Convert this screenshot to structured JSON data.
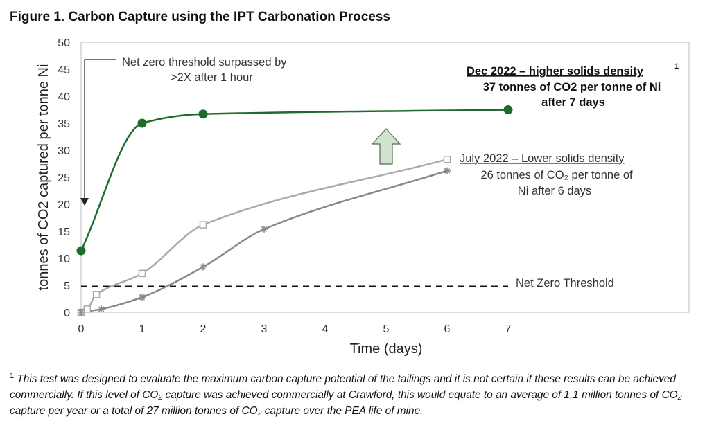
{
  "figure_title": "Figure 1. Carbon Capture using the IPT Carbonation Process",
  "footnote": {
    "marker": "1",
    "text": "This test was designed to evaluate the maximum carbon capture potential of the tailings and it is not certain if these results can be achieved commercially. If this level of CO₂ capture was achieved commercially at Crawford, this would equate to an average of 1.1 million tonnes of CO₂ capture per year or a total of 27 million tonnes of CO₂ capture over the PEA life of mine."
  },
  "colors": {
    "dec_series": "#1e6b2a",
    "jul_series": "#aaaaaa",
    "jul_star_series": "#888888",
    "threshold": "#111111",
    "arrow_fill": "#cfe3cf",
    "arrow_stroke": "#556b55"
  },
  "annotations": {
    "net_zero_callout_line1": "Net zero threshold surpassed by",
    "net_zero_callout_line2": ">2X after 1 hour",
    "dec_title": "Dec 2022 – higher solids density",
    "dec_title_sup": "1",
    "dec_line2": "37 tonnes of CO2 per tonne of Ni",
    "dec_line3": "after 7 days",
    "jul_title": "July 2022 – Lower solids density",
    "jul_line2": "26 tonnes of CO₂ per tonne of",
    "jul_line3": "Ni after 6 days",
    "threshold_label": "Net Zero Threshold"
  },
  "chart_data": {
    "type": "line",
    "xlabel": "Time (days)",
    "ylabel": "tonnes of CO2 captured per tonne Ni",
    "xlim": [
      0,
      7
    ],
    "ylim": [
      0,
      50
    ],
    "xticks": [
      0,
      1,
      2,
      3,
      4,
      5,
      6,
      7
    ],
    "yticks": [
      0,
      5,
      10,
      15,
      20,
      25,
      30,
      35,
      40,
      45,
      50
    ],
    "grid": false,
    "series": [
      {
        "key": "dec",
        "marker": "circle",
        "points": [
          [
            0,
            11.4
          ],
          [
            1,
            35
          ],
          [
            2,
            36.7
          ],
          [
            7,
            37.5
          ]
        ]
      },
      {
        "key": "jul_square",
        "marker": "square",
        "points": [
          [
            0,
            0
          ],
          [
            0.1,
            0.6
          ],
          [
            0.25,
            3.3
          ],
          [
            1,
            7.2
          ],
          [
            2,
            16.2
          ],
          [
            6,
            28.3
          ]
        ]
      },
      {
        "key": "jul_star",
        "marker": "star",
        "points": [
          [
            0,
            0
          ],
          [
            0.33,
            0.6
          ],
          [
            1,
            2.8
          ],
          [
            2,
            8.4
          ],
          [
            3,
            15.4
          ],
          [
            6,
            26.2
          ]
        ]
      }
    ],
    "threshold": {
      "y": 4.8,
      "x_range": [
        0,
        7
      ]
    }
  }
}
